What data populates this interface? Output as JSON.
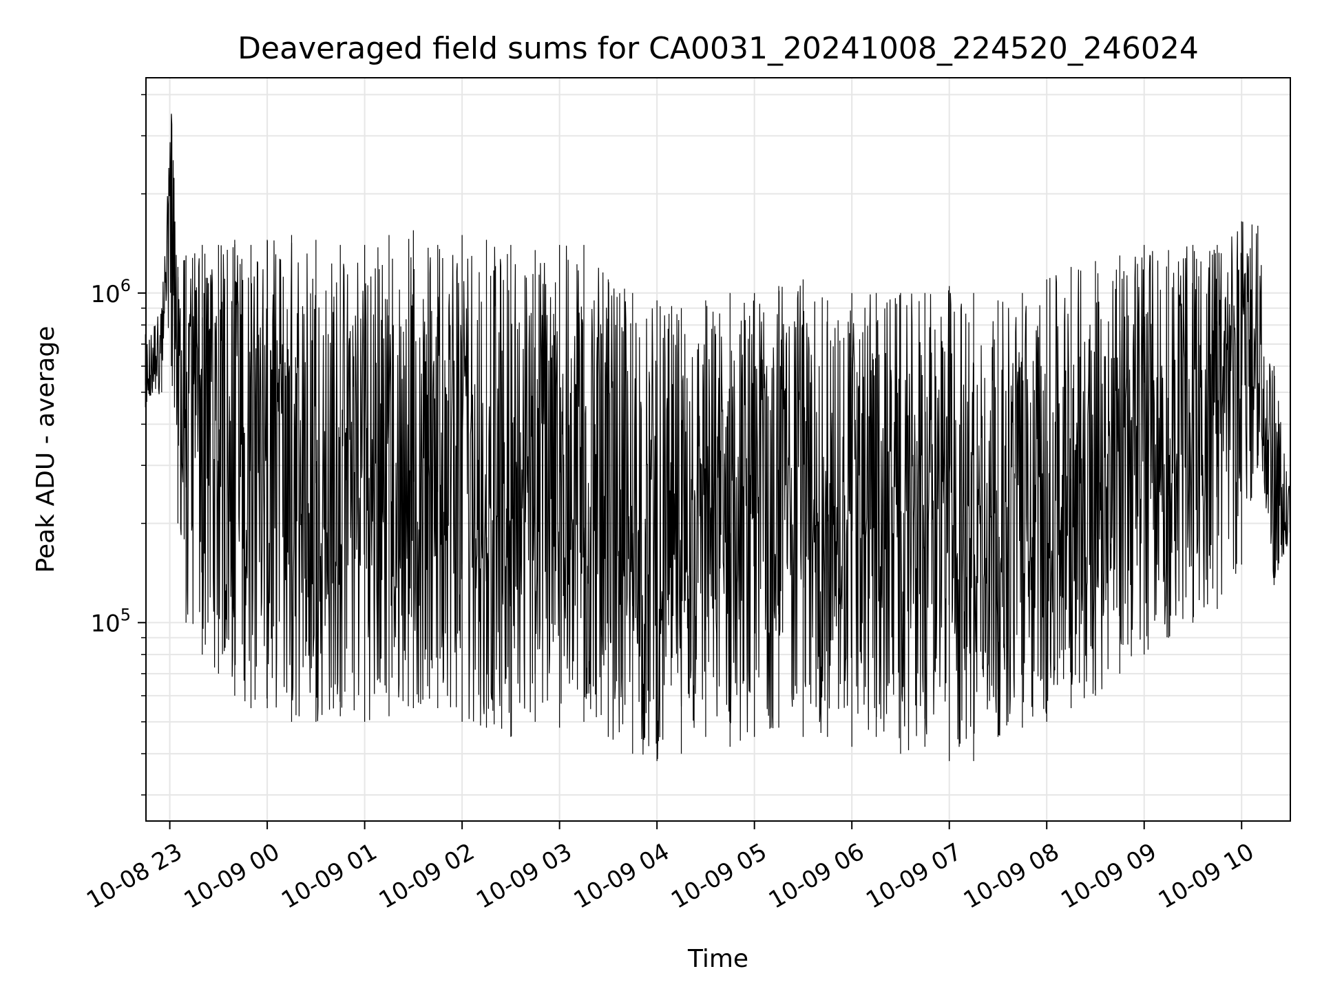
{
  "chart_data": {
    "type": "line",
    "title": "Deaveraged field sums for CA0031_20241008_224520_246024",
    "xlabel": "Time",
    "ylabel": "Peak ADU - average",
    "yscale": "log",
    "ylim": [
      25000,
      4500000
    ],
    "xlim": [
      "2024-10-08 22:45:20",
      "2024-10-09 10:30:00"
    ],
    "grid": true,
    "line_color": "#000000",
    "x_tick_labels": [
      "10-08 23",
      "10-09 00",
      "10-09 01",
      "10-09 02",
      "10-09 03",
      "10-09 04",
      "10-09 05",
      "10-09 06",
      "10-09 07",
      "10-09 08",
      "10-09 09",
      "10-09 10"
    ],
    "y_tick_labels": [
      {
        "base": "10",
        "exp": "5",
        "value": 100000
      },
      {
        "base": "10",
        "exp": "6",
        "value": 1000000
      }
    ],
    "series": [
      {
        "x": [
          "2024-10-08 22:45",
          "2024-10-08 22:55",
          "2024-10-08 23:01",
          "2024-10-08 23:05",
          "2024-10-08 23:10",
          "2024-10-08 23:20",
          "2024-10-08 23:30",
          "2024-10-08 23:40",
          "2024-10-08 23:50",
          "2024-10-09 00:00",
          "2024-10-09 00:15",
          "2024-10-09 00:30",
          "2024-10-09 00:45",
          "2024-10-09 01:00",
          "2024-10-09 01:15",
          "2024-10-09 01:30",
          "2024-10-09 01:45",
          "2024-10-09 02:00",
          "2024-10-09 02:15",
          "2024-10-09 02:30",
          "2024-10-09 02:45",
          "2024-10-09 03:00",
          "2024-10-09 03:15",
          "2024-10-09 03:30",
          "2024-10-09 03:45",
          "2024-10-09 04:00",
          "2024-10-09 04:15",
          "2024-10-09 04:30",
          "2024-10-09 04:45",
          "2024-10-09 05:00",
          "2024-10-09 05:15",
          "2024-10-09 05:30",
          "2024-10-09 05:45",
          "2024-10-09 06:00",
          "2024-10-09 06:15",
          "2024-10-09 06:30",
          "2024-10-09 06:45",
          "2024-10-09 07:00",
          "2024-10-09 07:15",
          "2024-10-09 07:30",
          "2024-10-09 07:45",
          "2024-10-09 08:00",
          "2024-10-09 08:15",
          "2024-10-09 08:30",
          "2024-10-09 08:45",
          "2024-10-09 09:00",
          "2024-10-09 09:15",
          "2024-10-09 09:30",
          "2024-10-09 09:45",
          "2024-10-09 10:00",
          "2024-10-09 10:10",
          "2024-10-09 10:20",
          "2024-10-09 10:30"
        ],
        "y": [
          450000,
          750000,
          3500000,
          800000,
          600000,
          700000,
          900000,
          650000,
          500000,
          400000,
          300000,
          250000,
          200000,
          400000,
          300000,
          250000,
          600000,
          350000,
          220000,
          200000,
          300000,
          180000,
          350000,
          150000,
          200000,
          120000,
          180000,
          150000,
          200000,
          220000,
          250000,
          300000,
          220000,
          200000,
          250000,
          180000,
          300000,
          200000,
          160000,
          180000,
          250000,
          300000,
          350000,
          250000,
          400000,
          450000,
          350000,
          500000,
          550000,
          800000,
          700000,
          150000,
          220000
        ],
        "y_max": [
          750000,
          900000,
          3500000,
          1200000,
          1300000,
          1400000,
          1400000,
          1450000,
          1400000,
          1450000,
          1500000,
          1450000,
          1400000,
          1400000,
          1500000,
          1550000,
          1400000,
          1500000,
          1450000,
          1400000,
          1350000,
          1400000,
          1400000,
          1100000,
          1000000,
          950000,
          900000,
          950000,
          1000000,
          1000000,
          1050000,
          1100000,
          950000,
          1000000,
          1000000,
          1000000,
          1000000,
          1050000,
          1000000,
          950000,
          1000000,
          1100000,
          1200000,
          1250000,
          1300000,
          1400000,
          1350000,
          1400000,
          1400000,
          1650000,
          1600000,
          600000,
          250000
        ],
        "y_min": [
          450000,
          500000,
          600000,
          200000,
          100000,
          80000,
          70000,
          60000,
          55000,
          55000,
          50000,
          50000,
          52000,
          50000,
          52000,
          55000,
          55000,
          50000,
          48000,
          45000,
          50000,
          48000,
          50000,
          45000,
          40000,
          38000,
          40000,
          45000,
          42000,
          45000,
          48000,
          45000,
          45000,
          42000,
          45000,
          40000,
          42000,
          38000,
          38000,
          45000,
          48000,
          50000,
          55000,
          60000,
          70000,
          80000,
          90000,
          100000,
          110000,
          150000,
          300000,
          130000,
          180000
        ]
      }
    ]
  }
}
